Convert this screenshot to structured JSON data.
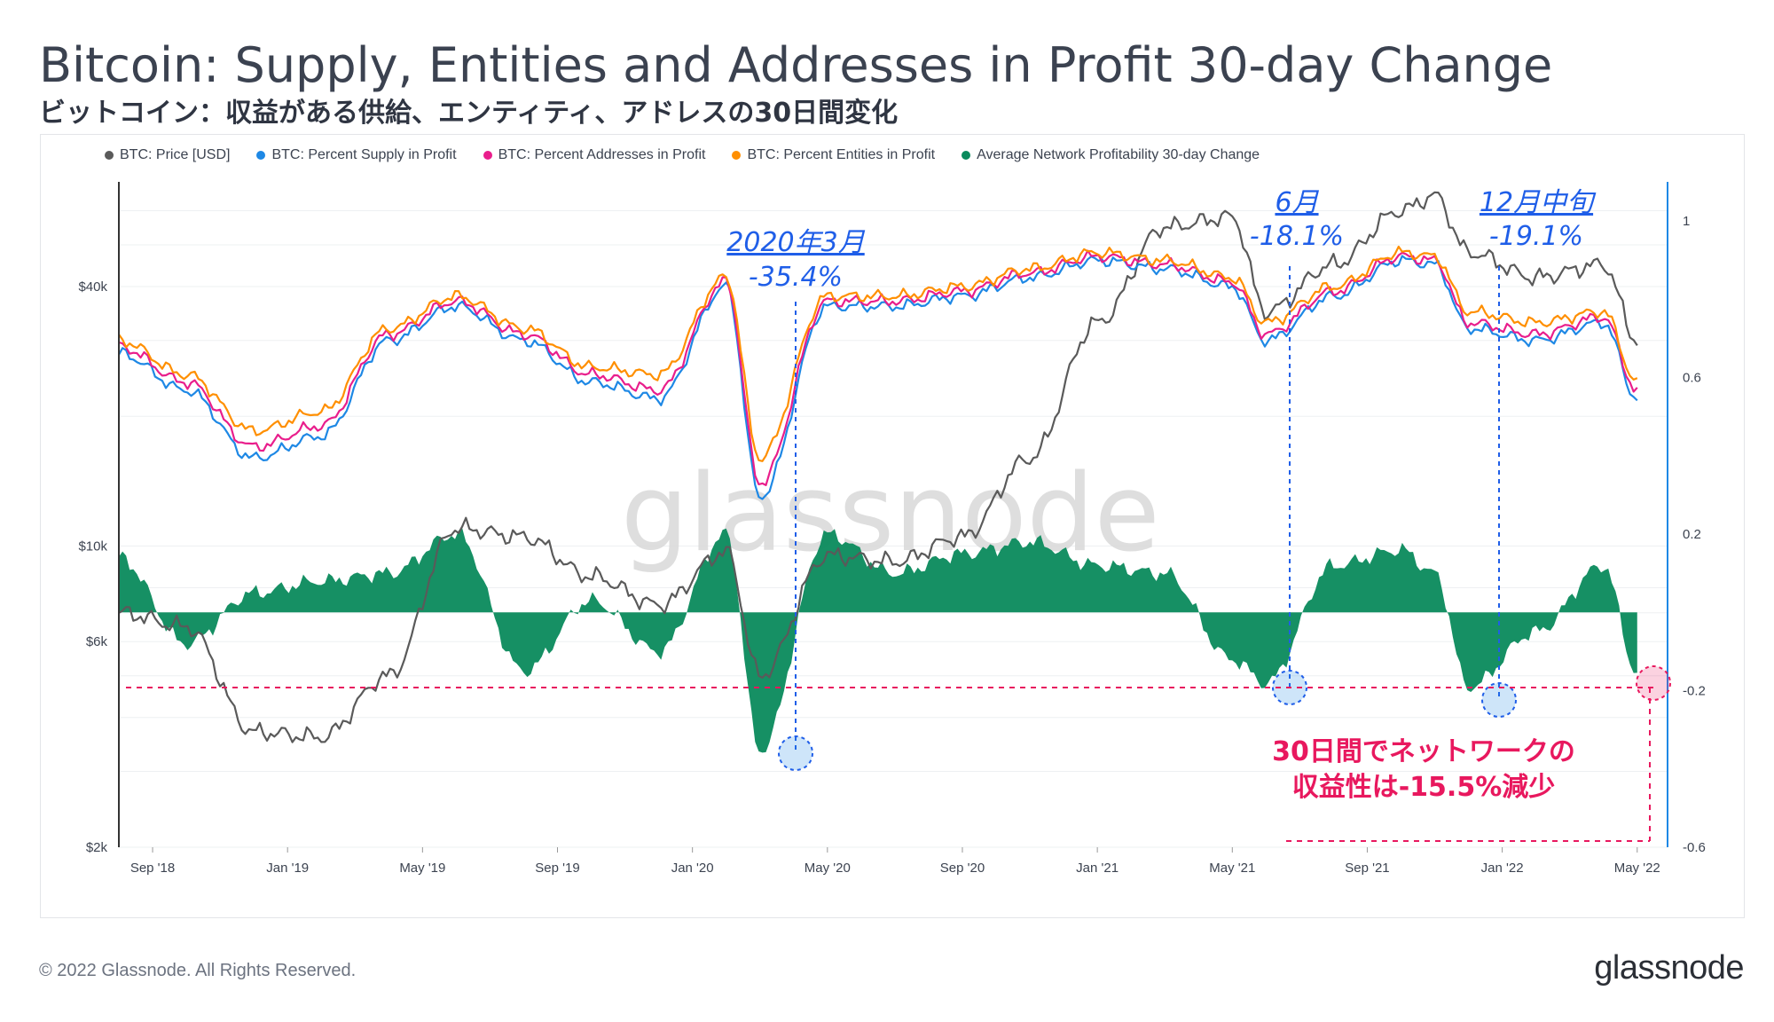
{
  "header": {
    "title": "Bitcoin: Supply, Entities and Addresses in Profit 30-day Change",
    "subtitle": "ビットコイン：収益がある供給、エンティティ、アドレスの30日間変化"
  },
  "legend": [
    {
      "label": "BTC: Price [USD]",
      "color": "#5a5a5a"
    },
    {
      "label": "BTC: Percent Supply in Profit",
      "color": "#1e88e5"
    },
    {
      "label": "BTC: Percent Addresses in Profit",
      "color": "#e91e8c"
    },
    {
      "label": "BTC: Percent Entities in Profit",
      "color": "#ff8f00"
    },
    {
      "label": "Average Network Profitability 30-day Change",
      "color": "#0a8a5c"
    }
  ],
  "footer": {
    "copyright": "© 2022 Glassnode. All Rights Reserved.",
    "brand": "glassnode",
    "watermark": "glassnode"
  },
  "annotations": {
    "march2020": {
      "label": "2020年3月",
      "value": "-35.4%"
    },
    "june2021": {
      "label": "6月",
      "value": "-18.1%"
    },
    "dec2021": {
      "label": "12月中旬",
      "value": "-19.1%"
    },
    "current_line1": "30日間でネットワークの",
    "current_line2": "収益性は-15.5%減少"
  },
  "chart_data": {
    "type": "line",
    "x_ticks": [
      "Sep '18",
      "Jan '19",
      "May '19",
      "Sep '19",
      "Jan '20",
      "May '20",
      "Sep '20",
      "Jan '21",
      "May '21",
      "Sep '21",
      "Jan '22",
      "May '22"
    ],
    "y_left_ticks": [
      "$40k",
      "$10k",
      "$6k",
      "$2k"
    ],
    "y_left_scale": "log",
    "y_left_range": [
      2000,
      70000
    ],
    "y_right_ticks": [
      "1",
      "0.6",
      "0.2",
      "-0.2",
      "-0.6"
    ],
    "y_right_range": [
      -0.6,
      1.1
    ],
    "x": [
      "2018-08",
      "2018-10",
      "2018-12",
      "2019-02",
      "2019-04",
      "2019-06",
      "2019-08",
      "2019-10",
      "2019-12",
      "2020-02",
      "2020-03",
      "2020-05",
      "2020-07",
      "2020-09",
      "2020-11",
      "2021-01",
      "2021-03",
      "2021-05",
      "2021-06",
      "2021-08",
      "2021-10",
      "2021-11",
      "2021-12",
      "2022-02",
      "2022-04",
      "2022-05"
    ],
    "series": [
      {
        "name": "BTC: Price [USD]",
        "axis": "left",
        "values": [
          7000,
          6500,
          3700,
          3600,
          5000,
          11000,
          10500,
          8500,
          7300,
          9700,
          5000,
          9500,
          9200,
          10500,
          16000,
          33000,
          55000,
          58000,
          35000,
          45000,
          60000,
          65000,
          48000,
          42000,
          45000,
          30000
        ]
      },
      {
        "name": "BTC: Percent Supply in Profit",
        "axis": "left",
        "values": [
          28000,
          23000,
          16000,
          18000,
          30000,
          36000,
          30000,
          24000,
          22000,
          40000,
          13000,
          36000,
          36000,
          38000,
          42000,
          46000,
          44000,
          40000,
          30000,
          38000,
          46000,
          45000,
          32000,
          30000,
          33000,
          22000
        ]
      },
      {
        "name": "BTC: Percent Addresses in Profit",
        "axis": "left",
        "values": [
          29000,
          24000,
          17000,
          19000,
          31000,
          37000,
          31000,
          25000,
          23000,
          41000,
          14000,
          37000,
          37000,
          39000,
          43000,
          47000,
          45000,
          41000,
          31000,
          39000,
          47000,
          46000,
          33000,
          31000,
          34000,
          23000
        ]
      },
      {
        "name": "BTC: Percent Entities in Profit",
        "axis": "left",
        "values": [
          30000,
          25000,
          18500,
          20500,
          32000,
          38000,
          32000,
          26000,
          25000,
          42000,
          16000,
          38000,
          38000,
          40000,
          44000,
          48000,
          46000,
          42000,
          33000,
          40000,
          48000,
          47000,
          35000,
          33000,
          35000,
          24000
        ]
      },
      {
        "name": "Average Network Profitability 30-day Change",
        "axis": "right",
        "type": "area",
        "values": [
          0.14,
          -0.08,
          0.05,
          0.08,
          0.1,
          0.2,
          -0.15,
          0.03,
          -0.1,
          0.2,
          -0.354,
          0.2,
          0.1,
          0.15,
          0.18,
          0.12,
          0.1,
          -0.12,
          -0.181,
          0.12,
          0.16,
          0.1,
          -0.191,
          -0.05,
          0.12,
          -0.155
        ]
      }
    ]
  }
}
